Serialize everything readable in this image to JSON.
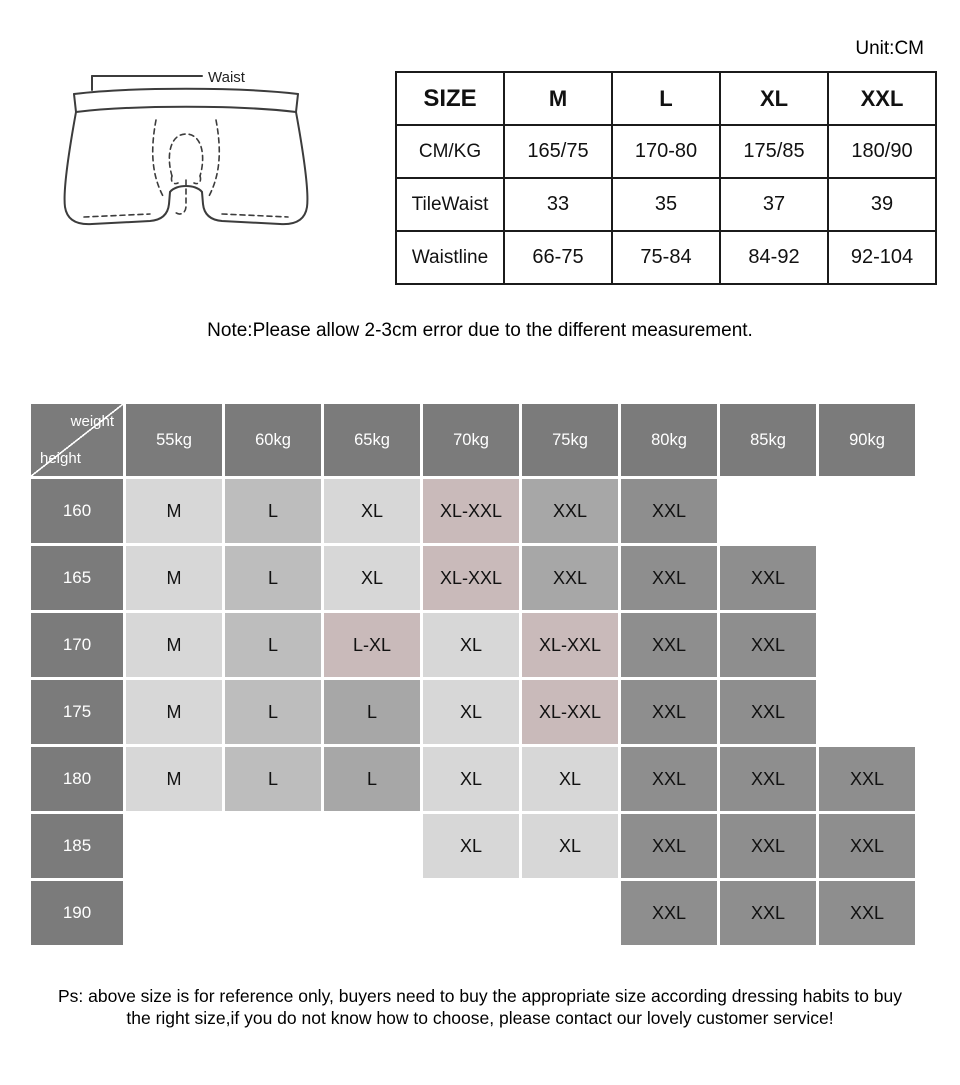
{
  "unit_label": "Unit:CM",
  "diagram": {
    "waist_label": "Waist"
  },
  "size_table": {
    "header": [
      "SIZE",
      "M",
      "L",
      "XL",
      "XXL"
    ],
    "rows": [
      {
        "label": "CM/KG",
        "values": [
          "165/75",
          "170-80",
          "175/85",
          "180/90"
        ]
      },
      {
        "label": "TileWaist",
        "values": [
          "33",
          "35",
          "37",
          "39"
        ]
      },
      {
        "label": "Waistline",
        "values": [
          "66-75",
          "75-84",
          "84-92",
          "92-104"
        ]
      }
    ]
  },
  "note": "Note:Please allow 2-3cm error due to the different measurement.",
  "matrix": {
    "corner_top": "weight",
    "corner_bottom": "height",
    "weights": [
      "55kg",
      "60kg",
      "65kg",
      "70kg",
      "75kg",
      "80kg",
      "85kg",
      "90kg"
    ],
    "rows": [
      {
        "height": "160",
        "cells": [
          {
            "t": "M",
            "c": "light"
          },
          {
            "t": "L",
            "c": "mid"
          },
          {
            "t": "XL",
            "c": "light"
          },
          {
            "t": "XL-XXL",
            "c": "pink"
          },
          {
            "t": "XXL",
            "c": "gray"
          },
          {
            "t": "XXL",
            "c": "dark"
          },
          {
            "t": "",
            "c": "empty"
          },
          {
            "t": "",
            "c": "empty"
          }
        ]
      },
      {
        "height": "165",
        "cells": [
          {
            "t": "M",
            "c": "light"
          },
          {
            "t": "L",
            "c": "mid"
          },
          {
            "t": "XL",
            "c": "light"
          },
          {
            "t": "XL-XXL",
            "c": "pink"
          },
          {
            "t": "XXL",
            "c": "gray"
          },
          {
            "t": "XXL",
            "c": "dark"
          },
          {
            "t": "XXL",
            "c": "dark"
          },
          {
            "t": "",
            "c": "empty"
          }
        ]
      },
      {
        "height": "170",
        "cells": [
          {
            "t": "M",
            "c": "light"
          },
          {
            "t": "L",
            "c": "mid"
          },
          {
            "t": "L-XL",
            "c": "pink"
          },
          {
            "t": "XL",
            "c": "light"
          },
          {
            "t": "XL-XXL",
            "c": "pink"
          },
          {
            "t": "XXL",
            "c": "dark"
          },
          {
            "t": "XXL",
            "c": "dark"
          },
          {
            "t": "",
            "c": "empty"
          }
        ]
      },
      {
        "height": "175",
        "cells": [
          {
            "t": "M",
            "c": "light"
          },
          {
            "t": "L",
            "c": "mid"
          },
          {
            "t": "L",
            "c": "gray"
          },
          {
            "t": "XL",
            "c": "light"
          },
          {
            "t": "XL-XXL",
            "c": "pink"
          },
          {
            "t": "XXL",
            "c": "dark"
          },
          {
            "t": "XXL",
            "c": "dark"
          },
          {
            "t": "",
            "c": "empty"
          }
        ]
      },
      {
        "height": "180",
        "cells": [
          {
            "t": "M",
            "c": "light"
          },
          {
            "t": "L",
            "c": "mid"
          },
          {
            "t": "L",
            "c": "gray"
          },
          {
            "t": "XL",
            "c": "light"
          },
          {
            "t": "XL",
            "c": "light"
          },
          {
            "t": "XXL",
            "c": "dark"
          },
          {
            "t": "XXL",
            "c": "dark"
          },
          {
            "t": "XXL",
            "c": "dark"
          }
        ]
      },
      {
        "height": "185",
        "cells": [
          {
            "t": "",
            "c": "empty"
          },
          {
            "t": "",
            "c": "empty"
          },
          {
            "t": "",
            "c": "empty"
          },
          {
            "t": "XL",
            "c": "light"
          },
          {
            "t": "XL",
            "c": "light"
          },
          {
            "t": "XXL",
            "c": "dark"
          },
          {
            "t": "XXL",
            "c": "dark"
          },
          {
            "t": "XXL",
            "c": "dark"
          }
        ]
      },
      {
        "height": "190",
        "cells": [
          {
            "t": "",
            "c": "empty"
          },
          {
            "t": "",
            "c": "empty"
          },
          {
            "t": "",
            "c": "empty"
          },
          {
            "t": "",
            "c": "empty"
          },
          {
            "t": "",
            "c": "empty"
          },
          {
            "t": "XXL",
            "c": "dark"
          },
          {
            "t": "XXL",
            "c": "dark"
          },
          {
            "t": "XXL",
            "c": "dark"
          }
        ]
      }
    ]
  },
  "palette": {
    "header": "#7b7b7b",
    "light": "#d7d7d7",
    "mid": "#bdbdbd",
    "pink": "#c9baba",
    "gray": "#a7a7a7",
    "dark": "#8e8e8e",
    "empty": "#ffffff"
  },
  "footer": {
    "line1": "Ps: above size is for reference only, buyers need to buy the appropriate size according dressing habits to buy",
    "line2": "the right size,if you do not know how to choose, please contact our lovely customer service!"
  }
}
